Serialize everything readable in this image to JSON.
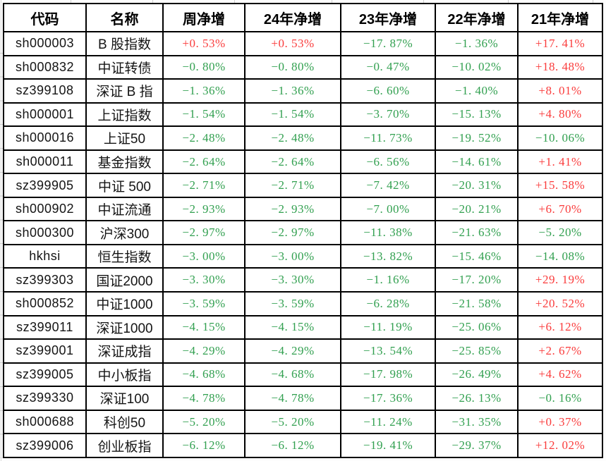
{
  "colors": {
    "positive_value": "#fa3c3c",
    "negative_value": "#32a050",
    "table_border": "#000000",
    "table_background": "#ffffff",
    "margin_gridline": "#d9d9d9"
  },
  "table": {
    "columns": [
      {
        "key": "code",
        "label": "代码"
      },
      {
        "key": "name",
        "label": "名称"
      },
      {
        "key": "week",
        "label": "周净增"
      },
      {
        "key": "y24",
        "label": "24年净增"
      },
      {
        "key": "y23",
        "label": "23年净增"
      },
      {
        "key": "y22",
        "label": "22年净增"
      },
      {
        "key": "y21",
        "label": "21年净增"
      }
    ],
    "rows": [
      {
        "code": "sh000003",
        "name": "B 股指数",
        "week": "+0. 53%",
        "y24": "+0. 53%",
        "y23": "−17. 87%",
        "y22": "−1. 36%",
        "y21": "+17. 41%"
      },
      {
        "code": "sh000832",
        "name": "中证转债",
        "week": "−0. 80%",
        "y24": "−0. 80%",
        "y23": "−0. 47%",
        "y22": "−10. 02%",
        "y21": "+18. 48%"
      },
      {
        "code": "sz399108",
        "name": "深证 B 指",
        "week": "−1. 36%",
        "y24": "−1. 36%",
        "y23": "−6. 60%",
        "y22": "−1. 40%",
        "y21": "+8. 01%"
      },
      {
        "code": "sh000001",
        "name": "上证指数",
        "week": "−1. 54%",
        "y24": "−1. 54%",
        "y23": "−3. 70%",
        "y22": "−15. 13%",
        "y21": "+4. 80%"
      },
      {
        "code": "sh000016",
        "name": "上证50",
        "week": "−2. 48%",
        "y24": "−2. 48%",
        "y23": "−11. 73%",
        "y22": "−19. 52%",
        "y21": "−10. 06%"
      },
      {
        "code": "sh000011",
        "name": "基金指数",
        "week": "−2. 64%",
        "y24": "−2. 64%",
        "y23": "−6. 56%",
        "y22": "−14. 61%",
        "y21": "+1. 41%"
      },
      {
        "code": "sz399905",
        "name": "中证 500",
        "week": "−2. 71%",
        "y24": "−2. 71%",
        "y23": "−7. 42%",
        "y22": "−20. 31%",
        "y21": "+15. 58%"
      },
      {
        "code": "sh000902",
        "name": "中证流通",
        "week": "−2. 93%",
        "y24": "−2. 93%",
        "y23": "−7. 00%",
        "y22": "−20. 21%",
        "y21": "+6. 70%"
      },
      {
        "code": "sh000300",
        "name": "沪深300",
        "week": "−2. 97%",
        "y24": "−2. 97%",
        "y23": "−11. 38%",
        "y22": "−21. 63%",
        "y21": "−5. 20%"
      },
      {
        "code": "hkhsi",
        "name": "恒生指数",
        "week": "−3. 00%",
        "y24": "−3. 00%",
        "y23": "−13. 82%",
        "y22": "−15. 46%",
        "y21": "−14. 08%"
      },
      {
        "code": "sz399303",
        "name": "国证2000",
        "week": "−3. 30%",
        "y24": "−3. 30%",
        "y23": "−1. 16%",
        "y22": "−17. 20%",
        "y21": "+29. 19%"
      },
      {
        "code": "sh000852",
        "name": "中证1000",
        "week": "−3. 59%",
        "y24": "−3. 59%",
        "y23": "−6. 28%",
        "y22": "−21. 58%",
        "y21": "+20. 52%"
      },
      {
        "code": "sz399011",
        "name": "深证1000",
        "week": "−4. 15%",
        "y24": "−4. 15%",
        "y23": "−11. 19%",
        "y22": "−25. 06%",
        "y21": "+6. 12%"
      },
      {
        "code": "sz399001",
        "name": "深证成指",
        "week": "−4. 29%",
        "y24": "−4. 29%",
        "y23": "−13. 54%",
        "y22": "−25. 85%",
        "y21": "+2. 67%"
      },
      {
        "code": "sz399005",
        "name": "中小板指",
        "week": "−4. 68%",
        "y24": "−4. 68%",
        "y23": "−17. 98%",
        "y22": "−26. 49%",
        "y21": "+4. 62%"
      },
      {
        "code": "sz399330",
        "name": "深证100",
        "week": "−4. 78%",
        "y24": "−4. 78%",
        "y23": "−17. 36%",
        "y22": "−26. 13%",
        "y21": "−0. 16%"
      },
      {
        "code": "sh000688",
        "name": "科创50",
        "week": "−5. 20%",
        "y24": "−5. 20%",
        "y23": "−11. 24%",
        "y22": "−31. 35%",
        "y21": "+0. 37%"
      },
      {
        "code": "sz399006",
        "name": "创业板指",
        "week": "−6. 12%",
        "y24": "−6. 12%",
        "y23": "−19. 41%",
        "y22": "−29. 37%",
        "y21": "+12. 02%"
      }
    ]
  }
}
